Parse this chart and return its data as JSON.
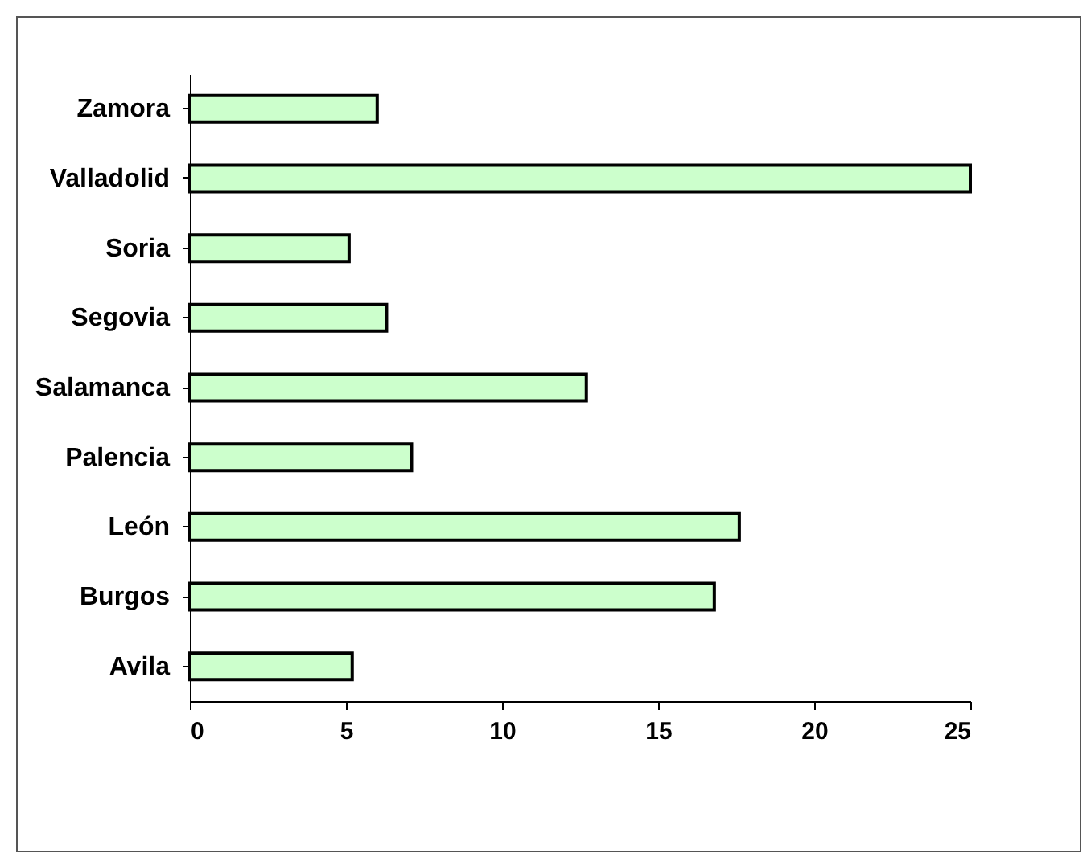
{
  "chart_data": {
    "type": "bar",
    "orientation": "horizontal",
    "categories": [
      "Zamora",
      "Valladolid",
      "Soria",
      "Segovia",
      "Salamanca",
      "Palencia",
      "León",
      "Burgos",
      "Avila"
    ],
    "values": [
      6,
      25,
      5.1,
      6.3,
      12.7,
      7.1,
      17.6,
      16.8,
      5.2
    ],
    "color": "#ccffcc",
    "xlim": [
      0,
      25
    ],
    "xticks": [
      0,
      5,
      10,
      15,
      20,
      25
    ]
  }
}
